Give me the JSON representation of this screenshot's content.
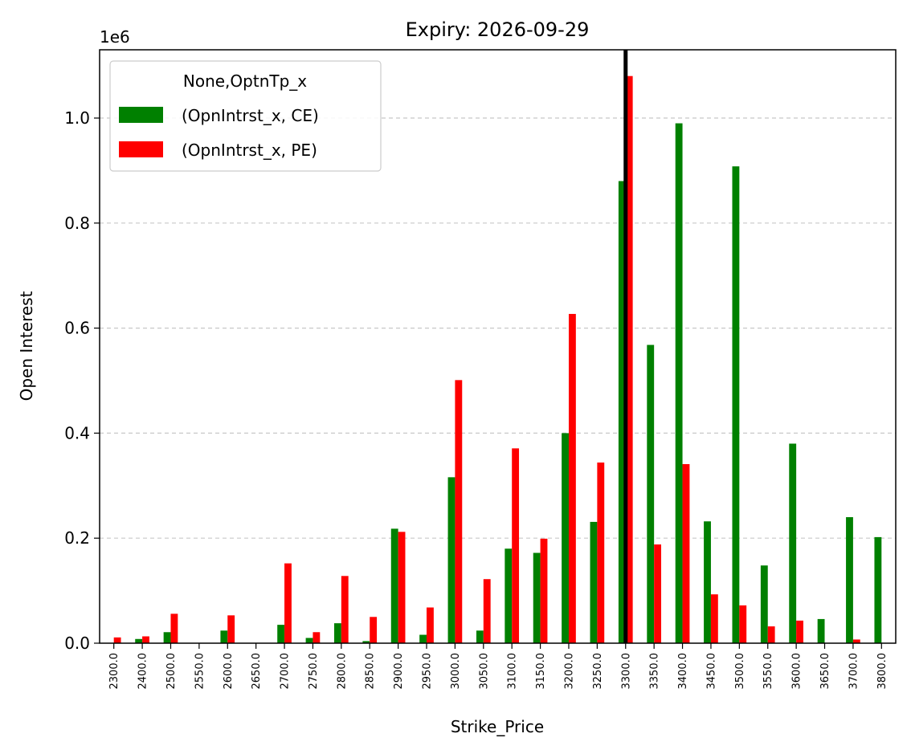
{
  "chart_data": {
    "type": "bar",
    "title": "Expiry: 2026-09-29",
    "xlabel": "Strike_Price",
    "ylabel": "Open Interest",
    "y_offset_label": "1e6",
    "y_scale": 1000000,
    "ylim": [
      0,
      1.13
    ],
    "yticks": [
      "0.0",
      "0.2",
      "0.4",
      "0.6",
      "0.8",
      "1.0"
    ],
    "grid": "horizontal dashed",
    "legend_title": "None,OptnTp_x",
    "legend_position": "top-left",
    "categories": [
      "2300.0",
      "2400.0",
      "2500.0",
      "2550.0",
      "2600.0",
      "2650.0",
      "2700.0",
      "2750.0",
      "2800.0",
      "2850.0",
      "2900.0",
      "2950.0",
      "3000.0",
      "3050.0",
      "3100.0",
      "3150.0",
      "3200.0",
      "3250.0",
      "3300.0",
      "3350.0",
      "3400.0",
      "3450.0",
      "3500.0",
      "3550.0",
      "3600.0",
      "3650.0",
      "3700.0",
      "3800.0"
    ],
    "series": [
      {
        "name": "(OpnIntrst_x, CE)",
        "color": "#008000",
        "values": [
          0,
          0.008,
          0.021,
          0,
          0.024,
          0,
          0.035,
          0.01,
          0.038,
          0.004,
          0.218,
          0.016,
          0.316,
          0.024,
          0.18,
          0.172,
          0.4,
          0.231,
          0.88,
          0.568,
          0.99,
          0.232,
          0.908,
          0.148,
          0.38,
          0.046,
          0.24,
          0.202
        ]
      },
      {
        "name": "(OpnIntrst_x, PE)",
        "color": "#ff0000",
        "values": [
          0.011,
          0.013,
          0.056,
          0,
          0.053,
          0,
          0.152,
          0.021,
          0.128,
          0.05,
          0.212,
          0.068,
          0.501,
          0.122,
          0.371,
          0.199,
          0.627,
          0.344,
          1.08,
          0.188,
          0.341,
          0.093,
          0.072,
          0.032,
          0.043,
          0,
          0.007,
          0
        ]
      }
    ],
    "vertical_marker": {
      "category": "3300.0",
      "color": "#000000"
    }
  }
}
